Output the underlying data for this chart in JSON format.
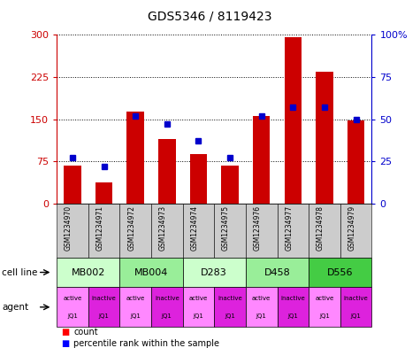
{
  "title": "GDS5346 / 8119423",
  "samples": [
    "GSM1234970",
    "GSM1234971",
    "GSM1234972",
    "GSM1234973",
    "GSM1234974",
    "GSM1234975",
    "GSM1234976",
    "GSM1234977",
    "GSM1234978",
    "GSM1234979"
  ],
  "counts": [
    68,
    38,
    163,
    115,
    88,
    68,
    155,
    295,
    235,
    148
  ],
  "percentile_ranks": [
    27,
    22,
    52,
    47,
    37,
    27,
    52,
    57,
    57,
    50
  ],
  "cell_lines": [
    {
      "label": "MB002",
      "start": 0,
      "end": 2,
      "color": "#ccffcc"
    },
    {
      "label": "MB004",
      "start": 2,
      "end": 4,
      "color": "#99ee99"
    },
    {
      "label": "D283",
      "start": 4,
      "end": 6,
      "color": "#ccffcc"
    },
    {
      "label": "D458",
      "start": 6,
      "end": 8,
      "color": "#99ee99"
    },
    {
      "label": "D556",
      "start": 8,
      "end": 10,
      "color": "#44cc44"
    }
  ],
  "active_agent_color": "#ff88ff",
  "inactive_agent_color": "#dd22dd",
  "bar_color": "#cc0000",
  "dot_color": "#0000cc",
  "ylim_left": [
    0,
    300
  ],
  "ylim_right": [
    0,
    100
  ],
  "yticks_left": [
    0,
    75,
    150,
    225,
    300
  ],
  "yticks_right": [
    0,
    25,
    50,
    75,
    100
  ],
  "ytick_labels_right": [
    "0",
    "25",
    "50",
    "75",
    "100%"
  ],
  "bar_width": 0.55,
  "bg_color": "#ffffff",
  "sample_bg_color": "#cccccc",
  "left_label_color": "#cc0000",
  "right_label_color": "#0000cc"
}
